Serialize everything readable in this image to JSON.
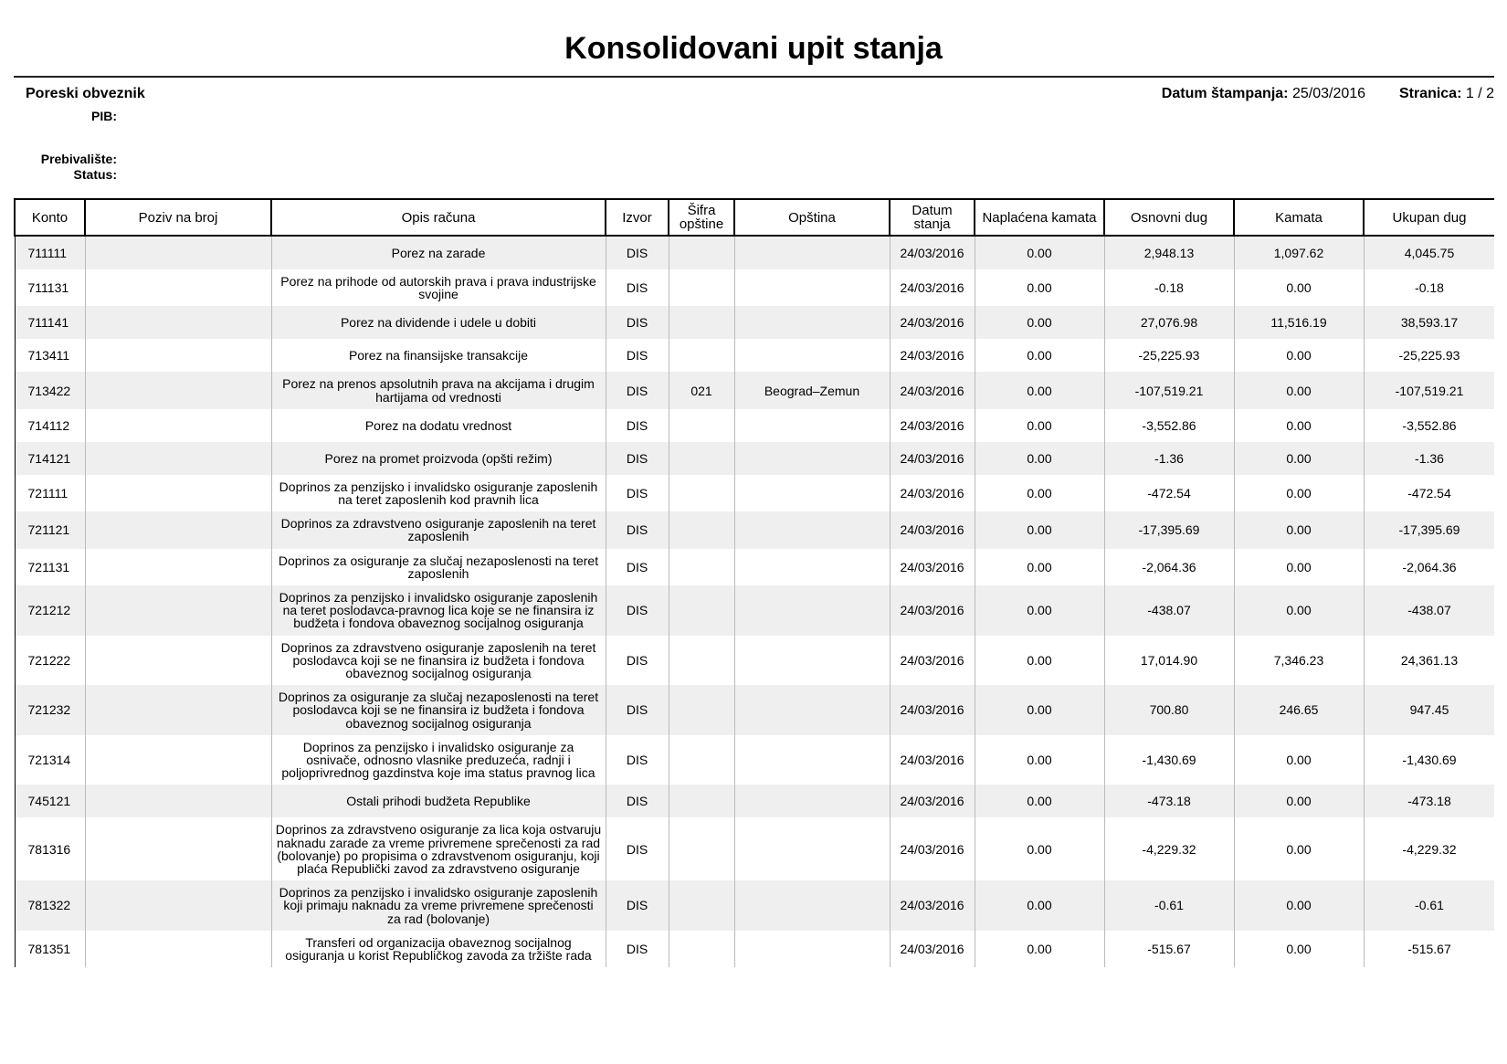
{
  "title": "Konsolidovani upit stanja",
  "taxpayer": {
    "heading": "Poreski obveznik",
    "pib_label": "PIB:",
    "residence_label": "Prebivalište:",
    "status_label": "Status:"
  },
  "meta": {
    "print_date_label": "Datum štampanja:",
    "print_date": "25/03/2016",
    "page_label": "Stranica:",
    "page": "1 / 2"
  },
  "table": {
    "headers": [
      "Konto",
      "Poziv na broj",
      "Opis računa",
      "Izvor",
      "Šifra opštine",
      "Opština",
      "Datum stanja",
      "Naplaćena kamata",
      "Osnovni dug",
      "Kamata",
      "Ukupan dug"
    ],
    "rows": [
      [
        "711111",
        "",
        "Porez na zarade",
        "DIS",
        "",
        "",
        "24/03/2016",
        "0.00",
        "2,948.13",
        "1,097.62",
        "4,045.75"
      ],
      [
        "711131",
        "",
        "Porez na prihode od autorskih prava i prava industrijske svojine",
        "DIS",
        "",
        "",
        "24/03/2016",
        "0.00",
        "-0.18",
        "0.00",
        "-0.18"
      ],
      [
        "711141",
        "",
        "Porez na dividende i udele u dobiti",
        "DIS",
        "",
        "",
        "24/03/2016",
        "0.00",
        "27,076.98",
        "11,516.19",
        "38,593.17"
      ],
      [
        "713411",
        "",
        "Porez na finansijske transakcije",
        "DIS",
        "",
        "",
        "24/03/2016",
        "0.00",
        "-25,225.93",
        "0.00",
        "-25,225.93"
      ],
      [
        "713422",
        "",
        "Porez na prenos apsolutnih prava na akcijama i drugim hartijama od vrednosti",
        "DIS",
        "021",
        "Beograd–Zemun",
        "24/03/2016",
        "0.00",
        "-107,519.21",
        "0.00",
        "-107,519.21"
      ],
      [
        "714112",
        "",
        "Porez na dodatu vrednost",
        "DIS",
        "",
        "",
        "24/03/2016",
        "0.00",
        "-3,552.86",
        "0.00",
        "-3,552.86"
      ],
      [
        "714121",
        "",
        "Porez na promet proizvoda (opšti režim)",
        "DIS",
        "",
        "",
        "24/03/2016",
        "0.00",
        "-1.36",
        "0.00",
        "-1.36"
      ],
      [
        "721111",
        "",
        "Doprinos za penzijsko i invalidsko osiguranje zaposlenih na teret zaposlenih kod pravnih lica",
        "DIS",
        "",
        "",
        "24/03/2016",
        "0.00",
        "-472.54",
        "0.00",
        "-472.54"
      ],
      [
        "721121",
        "",
        "Doprinos za zdravstveno osiguranje zaposlenih na teret zaposlenih",
        "DIS",
        "",
        "",
        "24/03/2016",
        "0.00",
        "-17,395.69",
        "0.00",
        "-17,395.69"
      ],
      [
        "721131",
        "",
        "Doprinos za osiguranje za slučaj nezaposlenosti na teret zaposlenih",
        "DIS",
        "",
        "",
        "24/03/2016",
        "0.00",
        "-2,064.36",
        "0.00",
        "-2,064.36"
      ],
      [
        "721212",
        "",
        "Doprinos za penzijsko i invalidsko osiguranje zaposlenih na teret poslodavca-pravnog lica koje se ne finansira iz budžeta i  fondova obaveznog socijalnog osiguranja",
        "DIS",
        "",
        "",
        "24/03/2016",
        "0.00",
        "-438.07",
        "0.00",
        "-438.07"
      ],
      [
        "721222",
        "",
        "Doprinos za zdravstveno osiguranje zaposlenih na teret poslodavca koji se ne finansira iz budžeta i fondova obaveznog socijalnog osiguranja",
        "DIS",
        "",
        "",
        "24/03/2016",
        "0.00",
        "17,014.90",
        "7,346.23",
        "24,361.13"
      ],
      [
        "721232",
        "",
        "Doprinos za osiguranje za slučaj nezaposlenosti na teret poslodavca koji se ne finansira iz budžeta i fondova obaveznog socijalnog osiguranja",
        "DIS",
        "",
        "",
        "24/03/2016",
        "0.00",
        "700.80",
        "246.65",
        "947.45"
      ],
      [
        "721314",
        "",
        "Doprinos za penzijsko i invalidsko osiguranje za osnivače, odnosno vlasnike preduzeća, radnji i poljoprivrednog gazdinstva koje ima status pravnog lica",
        "DIS",
        "",
        "",
        "24/03/2016",
        "0.00",
        "-1,430.69",
        "0.00",
        "-1,430.69"
      ],
      [
        "745121",
        "",
        "Ostali prihodi budžeta Republike",
        "DIS",
        "",
        "",
        "24/03/2016",
        "0.00",
        "-473.18",
        "0.00",
        "-473.18"
      ],
      [
        "781316",
        "",
        "Doprinos za zdravstveno osiguranje za lica koja ostvaruju naknadu zarade za vreme privremene sprečenosti za rad (bolovanje) po propisima o zdravstvenom osiguranju, koji plaća Republički zavod za zdravstveno osiguranje",
        "DIS",
        "",
        "",
        "24/03/2016",
        "0.00",
        "-4,229.32",
        "0.00",
        "-4,229.32"
      ],
      [
        "781322",
        "",
        "Doprinos za penzijsko i invalidsko osiguranje zaposlenih koji primaju naknadu za vreme privremene sprečenosti za rad (bolovanje)",
        "DIS",
        "",
        "",
        "24/03/2016",
        "0.00",
        "-0.61",
        "0.00",
        "-0.61"
      ],
      [
        "781351",
        "",
        "Transferi od organizacija obaveznog socijalnog osiguranja u korist Republičkog zavoda za tržište rada",
        "DIS",
        "",
        "",
        "24/03/2016",
        "0.00",
        "-515.67",
        "0.00",
        "-515.67"
      ]
    ]
  }
}
